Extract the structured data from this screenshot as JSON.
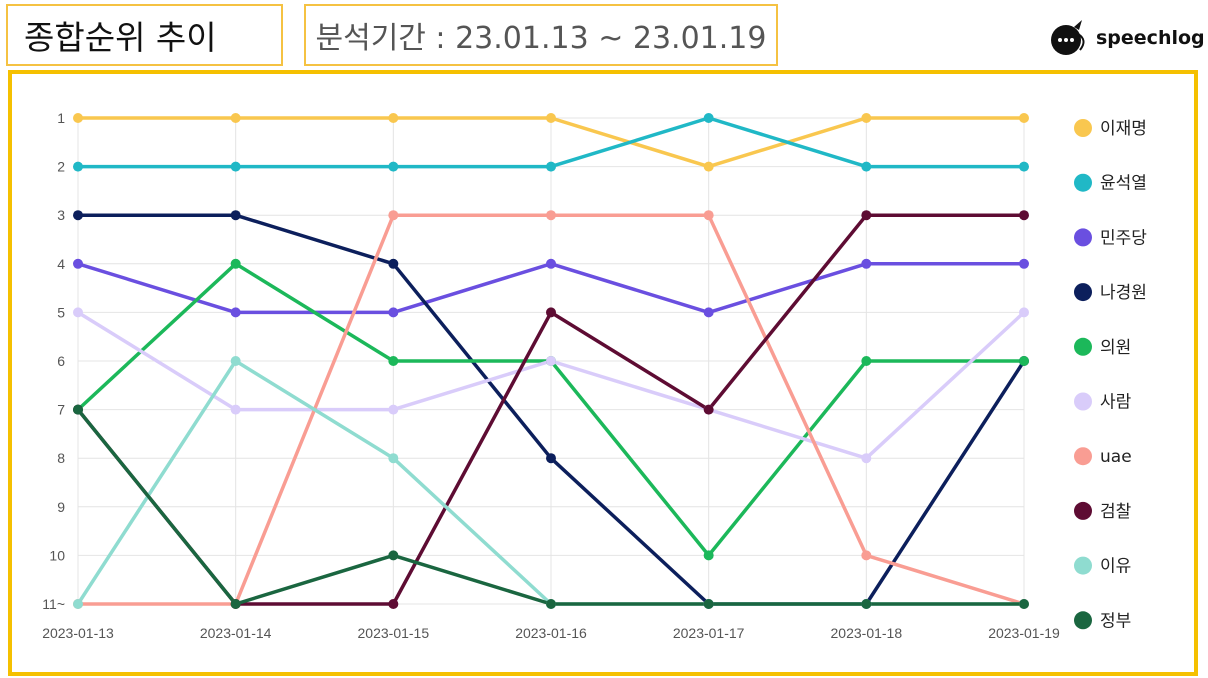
{
  "header": {
    "title": "종합순위 추이",
    "period": "분석기간 : 23.01.13 ~ 23.01.19",
    "logo_text": "speechlog"
  },
  "chart_data": {
    "type": "line",
    "x": [
      "2023-01-13",
      "2023-01-14",
      "2023-01-15",
      "2023-01-16",
      "2023-01-17",
      "2023-01-18",
      "2023-01-19"
    ],
    "y_ticks": [
      "1",
      "2",
      "3",
      "4",
      "5",
      "6",
      "7",
      "8",
      "9",
      "10",
      "11~"
    ],
    "y_reversed": true,
    "ylim": [
      1,
      11
    ],
    "grid": true,
    "legend_position": "right",
    "series": [
      {
        "name": "이재명",
        "color": "#f9c74f",
        "values": [
          1,
          1,
          1,
          1,
          2,
          1,
          1
        ]
      },
      {
        "name": "윤석열",
        "color": "#20b8c6",
        "values": [
          2,
          2,
          2,
          2,
          1,
          2,
          2
        ]
      },
      {
        "name": "민주당",
        "color": "#6a4fe0",
        "values": [
          4,
          5,
          5,
          4,
          5,
          4,
          4
        ]
      },
      {
        "name": "나경원",
        "color": "#0c1f5c",
        "values": [
          3,
          3,
          4,
          8,
          11,
          11,
          6
        ]
      },
      {
        "name": "의원",
        "color": "#1cb85a",
        "values": [
          7,
          4,
          6,
          6,
          10,
          6,
          6
        ]
      },
      {
        "name": "사람",
        "color": "#d9ccfa",
        "values": [
          5,
          7,
          7,
          6,
          7,
          8,
          5
        ]
      },
      {
        "name": "uae",
        "color": "#f99d93",
        "values": [
          11,
          11,
          3,
          3,
          3,
          10,
          11
        ]
      },
      {
        "name": "검찰",
        "color": "#5e0c33",
        "values": [
          7,
          11,
          11,
          5,
          7,
          3,
          3
        ]
      },
      {
        "name": "이유",
        "color": "#8fdcd0",
        "values": [
          11,
          6,
          8,
          11,
          11,
          11,
          11
        ]
      },
      {
        "name": "정부",
        "color": "#1a6640",
        "values": [
          7,
          11,
          10,
          11,
          11,
          11,
          11
        ]
      }
    ]
  }
}
